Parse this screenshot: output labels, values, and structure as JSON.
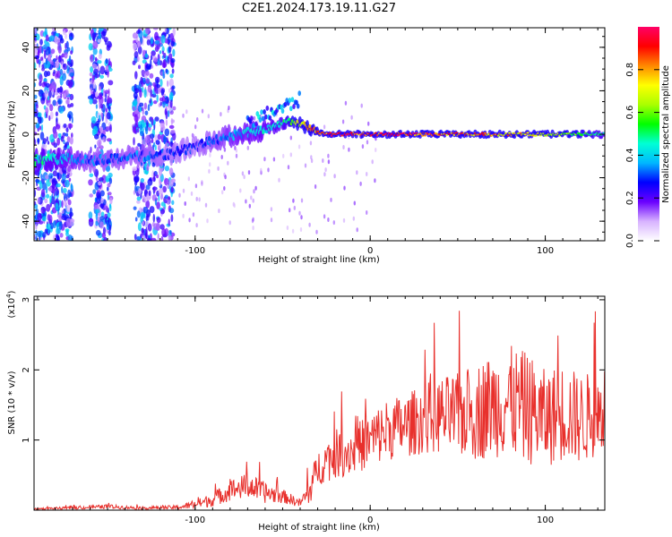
{
  "title": "C2E1.2024.173.19.11.G27",
  "chart_data": [
    {
      "type": "heatmap",
      "title": "C2E1.2024.173.19.11.G27",
      "xlabel": "Height of straight line (km)",
      "ylabel": "Frequency (Hz)",
      "xlim": [
        -192,
        134
      ],
      "ylim": [
        -49,
        49
      ],
      "xticks": [
        -100,
        0,
        100
      ],
      "yticks": [
        -40,
        -20,
        0,
        20,
        40
      ],
      "colorbar": {
        "label": "Normalized spectral amplitude",
        "range": [
          0,
          1
        ],
        "ticks": [
          "0.0",
          "0.2",
          "0.4",
          "0.6",
          "0.8"
        ],
        "colors": [
          "#ffffff",
          "#d7b2ff",
          "#6a00ff",
          "#0000ff",
          "#00b7ff",
          "#00ffd5",
          "#00ff00",
          "#aaff00",
          "#ffff00",
          "#ff8800",
          "#ff0000",
          "#ff0066"
        ]
      },
      "ridge": {
        "x": [
          -190,
          -175,
          -160,
          -145,
          -130,
          -115,
          -100,
          -90,
          -80,
          -70,
          -60,
          -50,
          -45,
          -40,
          -35,
          -30,
          -25,
          -20,
          0,
          20,
          40,
          60,
          80,
          100,
          120,
          134
        ],
        "frequency": [
          -12,
          -11,
          -12,
          -11,
          -10,
          -9,
          -6,
          -3,
          -1,
          1,
          2,
          5,
          6,
          5,
          3,
          1,
          0,
          0,
          0,
          0,
          0,
          0,
          0,
          0,
          0,
          0
        ],
        "amplitude": [
          0.5,
          0.45,
          0.35,
          0.35,
          0.35,
          0.3,
          0.3,
          0.35,
          0.4,
          0.45,
          0.45,
          0.5,
          0.6,
          0.75,
          0.9,
          0.95,
          1.0,
          1.0,
          1.0,
          0.98,
          0.95,
          0.9,
          0.85,
          0.75,
          0.6,
          0.5
        ]
      },
      "noise_bands": [
        [
          -192,
          -170
        ],
        [
          -160,
          -148
        ],
        [
          -135,
          -112
        ]
      ]
    },
    {
      "type": "line",
      "xlabel": "Height of straight line (km)",
      "ylabel": "SNR (10 * v/v)",
      "yscale_note": "(x10",
      "yscale_exponent": "4",
      "xlim": [
        -192,
        134
      ],
      "ylim": [
        0,
        3.05
      ],
      "xticks": [
        -100,
        0,
        100
      ],
      "yticks": [
        1,
        2,
        3
      ],
      "color": "#e8302c",
      "series": [
        {
          "x": [
            -192,
            -170,
            -150,
            -130,
            -110,
            -100,
            -90,
            -80,
            -70,
            -60,
            -50,
            -40,
            -35,
            -30,
            -25,
            -20,
            -10,
            0,
            10,
            20,
            30,
            40,
            50,
            60,
            70,
            80,
            90,
            100,
            110,
            120,
            134
          ],
          "y": [
            0.02,
            0.03,
            0.05,
            0.03,
            0.04,
            0.08,
            0.15,
            0.28,
            0.35,
            0.25,
            0.2,
            0.1,
            0.25,
            0.6,
            0.7,
            0.8,
            0.85,
            1.0,
            1.15,
            1.2,
            1.3,
            1.35,
            1.35,
            1.4,
            1.5,
            1.55,
            1.45,
            1.3,
            1.4,
            1.3,
            1.4
          ],
          "spread": [
            0.01,
            0.02,
            0.03,
            0.02,
            0.03,
            0.06,
            0.1,
            0.15,
            0.18,
            0.15,
            0.1,
            0.06,
            0.2,
            0.25,
            0.3,
            0.35,
            0.35,
            0.4,
            0.45,
            0.45,
            0.5,
            0.55,
            0.6,
            0.7,
            0.75,
            0.8,
            0.8,
            0.7,
            0.7,
            0.65,
            0.6
          ]
        }
      ]
    }
  ]
}
